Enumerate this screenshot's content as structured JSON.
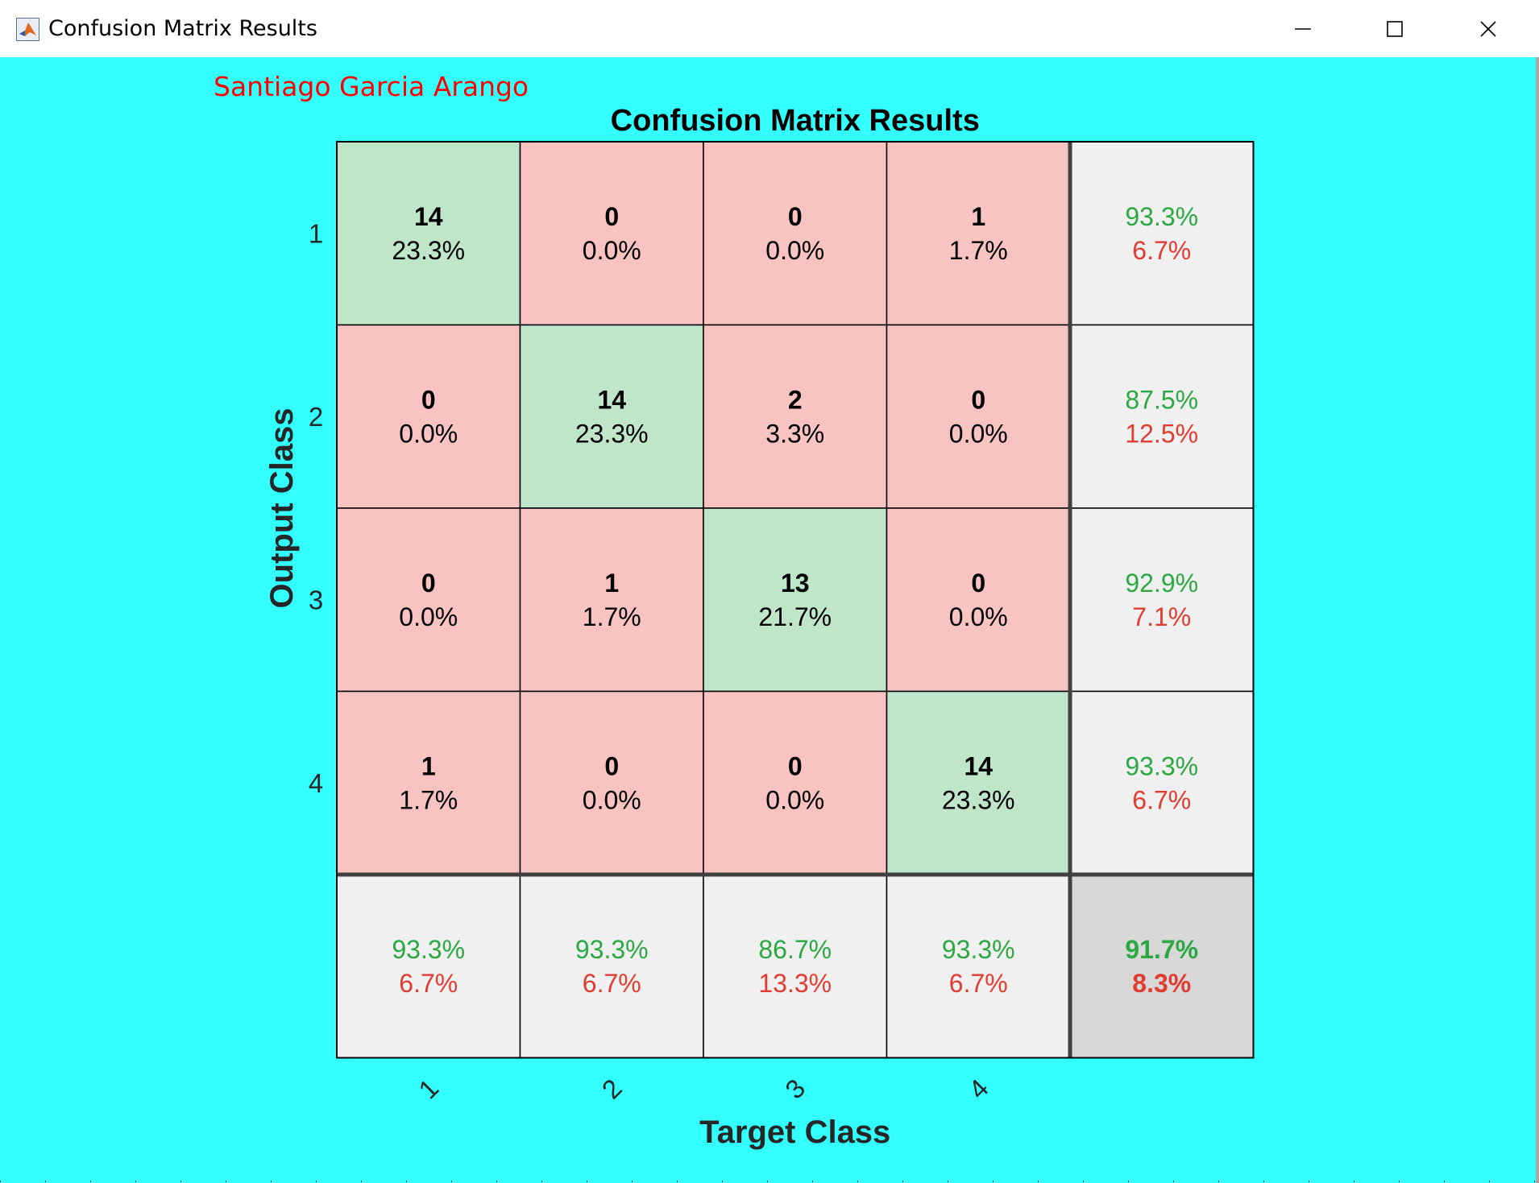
{
  "window": {
    "title": "Confusion Matrix Results",
    "icons": [
      "matlab-icon",
      "minimize-icon",
      "maximize-icon",
      "close-icon"
    ]
  },
  "author": "Santiago Garcia Arango",
  "colors": {
    "background": "#33ffff",
    "correct_cell": "#bfe6c8",
    "incorrect_cell": "#f8c3c0",
    "summary_cell": "#f0f0f0",
    "overall_cell": "#d8d8d8",
    "green_text": "#2ca842",
    "red_text": "#e03c32",
    "author_text": "#ff0000"
  },
  "chart_data": {
    "type": "heatmap",
    "title": "Confusion Matrix Results",
    "xlabel": "Target Class",
    "ylabel": "Output Class",
    "row_labels": [
      "1",
      "2",
      "3",
      "4"
    ],
    "col_labels": [
      "1",
      "2",
      "3",
      "4"
    ],
    "counts": [
      [
        14,
        0,
        0,
        1
      ],
      [
        0,
        14,
        2,
        0
      ],
      [
        0,
        1,
        13,
        0
      ],
      [
        1,
        0,
        0,
        14
      ]
    ],
    "percents": [
      [
        "23.3%",
        "0.0%",
        "0.0%",
        "1.7%"
      ],
      [
        "0.0%",
        "23.3%",
        "3.3%",
        "0.0%"
      ],
      [
        "0.0%",
        "1.7%",
        "21.7%",
        "0.0%"
      ],
      [
        "1.7%",
        "0.0%",
        "0.0%",
        "23.3%"
      ]
    ],
    "row_summary": [
      {
        "correct": "93.3%",
        "error": "6.7%"
      },
      {
        "correct": "87.5%",
        "error": "12.5%"
      },
      {
        "correct": "92.9%",
        "error": "7.1%"
      },
      {
        "correct": "93.3%",
        "error": "6.7%"
      }
    ],
    "col_summary": [
      {
        "correct": "93.3%",
        "error": "6.7%"
      },
      {
        "correct": "93.3%",
        "error": "6.7%"
      },
      {
        "correct": "86.7%",
        "error": "13.3%"
      },
      {
        "correct": "93.3%",
        "error": "6.7%"
      }
    ],
    "overall": {
      "correct": "91.7%",
      "error": "8.3%"
    }
  }
}
